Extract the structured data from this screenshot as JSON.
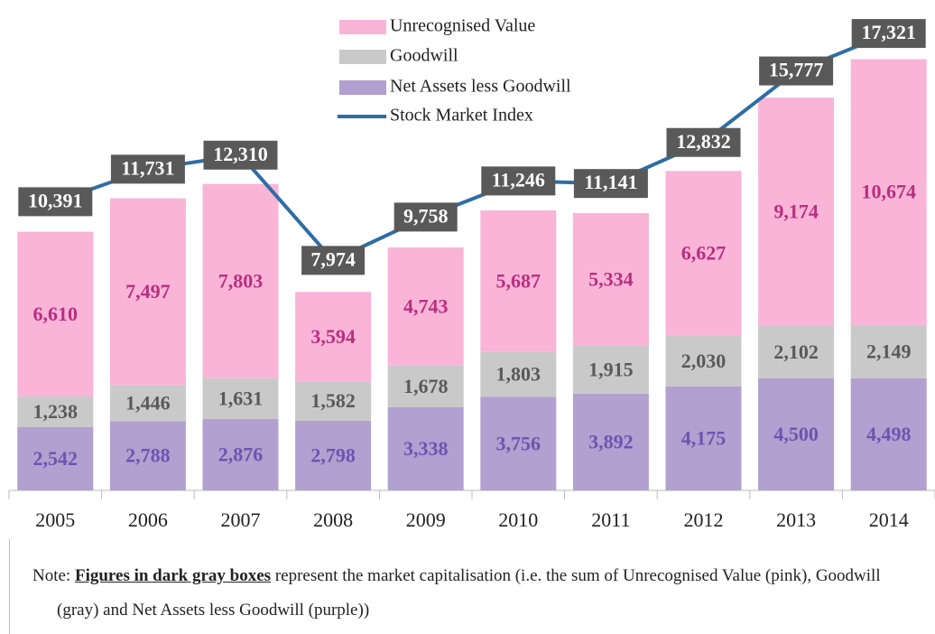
{
  "chart_data": {
    "type": "stacked-bar-line",
    "categories": [
      "2005",
      "2006",
      "2007",
      "2008",
      "2009",
      "2010",
      "2011",
      "2012",
      "2013",
      "2014"
    ],
    "series": [
      {
        "name": "Unrecognised Value",
        "type": "bar",
        "color": "#f9b4d8",
        "label_color": "#b82f7f",
        "values": [
          6610,
          7497,
          7803,
          3594,
          4743,
          5687,
          5334,
          6627,
          9174,
          10674
        ],
        "value_labels": [
          "6,610",
          "7,497",
          "7,803",
          "3,594",
          "4,743",
          "5,687",
          "5,334",
          "6,627",
          "9,174",
          "10,674"
        ]
      },
      {
        "name": "Goodwill",
        "type": "bar",
        "color": "#c9c9c9",
        "label_color": "#595959",
        "values": [
          1238,
          1446,
          1631,
          1582,
          1678,
          1803,
          1915,
          2030,
          2102,
          2149
        ],
        "value_labels": [
          "1,238",
          "1,446",
          "1,631",
          "1,582",
          "1,678",
          "1,803",
          "1,915",
          "2,030",
          "2,102",
          "2,149"
        ]
      },
      {
        "name": "Net Assets less Goodwill",
        "type": "bar",
        "color": "#b1a0d0",
        "label_color": "#7052b0",
        "values": [
          2542,
          2788,
          2876,
          2798,
          3338,
          3756,
          3892,
          4175,
          4500,
          4498
        ],
        "value_labels": [
          "2,542",
          "2,788",
          "2,876",
          "2,798",
          "3,338",
          "3,756",
          "3,892",
          "4,175",
          "4,500",
          "4,498"
        ]
      },
      {
        "name": "Stock Market Index",
        "type": "line",
        "axis": "y2",
        "color": "#2e6da4",
        "label_color": "#595959",
        "values": [
          10391,
          11731,
          12310,
          7974,
          9758,
          11246,
          11141,
          12832,
          15777,
          17321
        ],
        "value_labels": [
          "10,391",
          "11,731",
          "12,310",
          "7,974",
          "9,758",
          "11,246",
          "11,141",
          "12,832",
          "15,777",
          "17,321"
        ]
      }
    ],
    "ylim": [
      0,
      19700
    ],
    "y2lim": [
      -1500,
      18700
    ],
    "note": {
      "prefix": "Note:",
      "emphasis": "Figures in dark gray boxes",
      "text": "represent the market capitalisation (i.e. the sum of Unrecognised Value (pink), Goodwill (gray) and Net Assets less Goodwill (purple))"
    }
  }
}
